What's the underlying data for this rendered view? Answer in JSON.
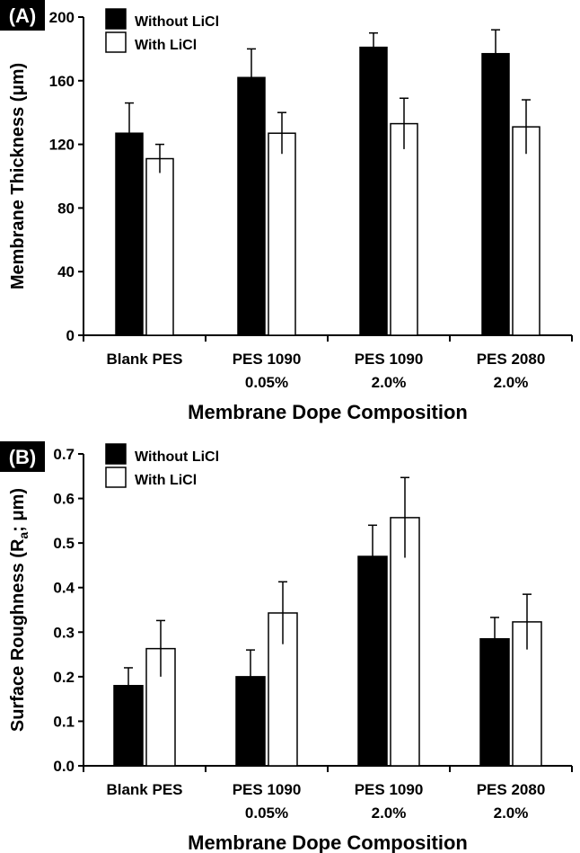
{
  "chart_data": [
    {
      "type": "bar",
      "panel_label": "(A)",
      "categories": [
        [
          "Blank PES"
        ],
        [
          "PES 1090",
          "0.05%"
        ],
        [
          "PES 1090",
          "2.0%"
        ],
        [
          "PES 2080",
          "2.0%"
        ]
      ],
      "series": [
        {
          "name": "Without LiCl",
          "color": "#000000",
          "values": [
            127,
            162,
            181,
            177
          ],
          "errors": [
            19,
            18,
            9,
            15
          ]
        },
        {
          "name": "With LiCl",
          "color": "#ffffff",
          "values": [
            111,
            127,
            133,
            131
          ],
          "errors": [
            9,
            13,
            16,
            17
          ]
        }
      ],
      "xlabel": "Membrane Dope Composition",
      "ylabel": "Membrane Thickness (μm)",
      "ylim": [
        0,
        200
      ],
      "yticks": [
        "0",
        "40",
        "80",
        "120",
        "160",
        "200"
      ],
      "grid": false,
      "legend_position": "top-left"
    },
    {
      "type": "bar",
      "panel_label": "(B)",
      "categories": [
        [
          "Blank PES"
        ],
        [
          "PES 1090",
          "0.05%"
        ],
        [
          "PES 1090",
          "2.0%"
        ],
        [
          "PES 2080",
          "2.0%"
        ]
      ],
      "series": [
        {
          "name": "Without LiCl",
          "color": "#000000",
          "values": [
            0.18,
            0.2,
            0.47,
            0.285
          ],
          "errors": [
            0.04,
            0.06,
            0.07,
            0.048
          ]
        },
        {
          "name": "With LiCl",
          "color": "#ffffff",
          "values": [
            0.263,
            0.343,
            0.557,
            0.323
          ],
          "errors": [
            0.063,
            0.07,
            0.09,
            0.062
          ]
        }
      ],
      "xlabel": "Membrane Dope Composition",
      "ylabel": "Surface Roughness  (Ra ; μm)",
      "ylabel_parts": [
        "Surface Roughness  (R",
        "a",
        "; μm)"
      ],
      "ylim": [
        0,
        0.7
      ],
      "yticks": [
        "0.0",
        "0.1",
        "0.2",
        "0.3",
        "0.4",
        "0.5",
        "0.6",
        "0.7"
      ],
      "grid": false,
      "legend_position": "top-left"
    }
  ]
}
